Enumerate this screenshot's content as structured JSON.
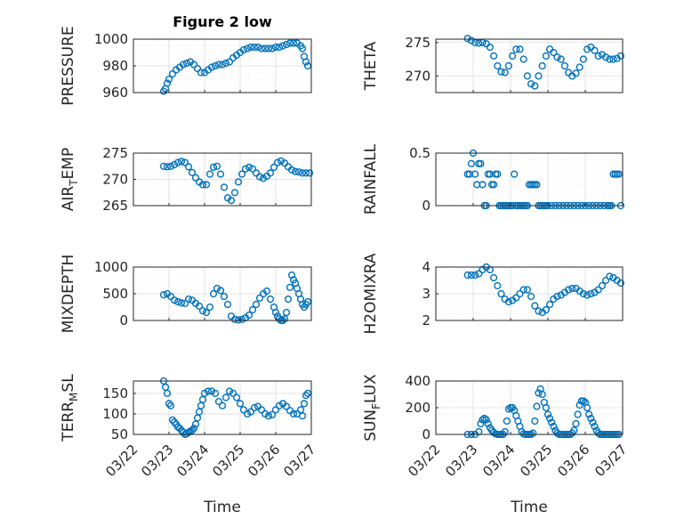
{
  "figure_title": "Figure 2 low",
  "x_tick_labels": [
    "03/22",
    "03/23",
    "03/24",
    "03/25",
    "03/26",
    "03/27"
  ],
  "x_axis_label": "Time",
  "marker_color": "#0072BD",
  "axes_color": "#262626",
  "grid_color": "#dcdcdc",
  "chart_data": [
    {
      "type": "scatter",
      "ylabel": "PRESSURE",
      "ylabel_base": "PRESSURE",
      "ylabel_sub": "",
      "ylabel_tail": "",
      "ylim": [
        960,
        1000
      ],
      "yticks": [
        960,
        980,
        1000
      ],
      "xlim": [
        0,
        5
      ],
      "grid": true,
      "x": [
        0.85,
        0.9,
        0.95,
        1.0,
        1.1,
        1.2,
        1.3,
        1.4,
        1.5,
        1.6,
        1.7,
        1.8,
        1.9,
        2.0,
        2.1,
        2.2,
        2.3,
        2.4,
        2.5,
        2.6,
        2.7,
        2.8,
        2.9,
        3.0,
        3.1,
        3.2,
        3.3,
        3.4,
        3.5,
        3.6,
        3.7,
        3.8,
        3.9,
        4.0,
        4.1,
        4.2,
        4.3,
        4.4,
        4.5,
        4.6,
        4.7,
        4.75,
        4.8,
        4.85,
        4.9
      ],
      "y": [
        961,
        963,
        967,
        970,
        974,
        977,
        979,
        981,
        982,
        983,
        981,
        978,
        975,
        975,
        977,
        979,
        980,
        981,
        981,
        982,
        983,
        986,
        988,
        990,
        992,
        993,
        994,
        994,
        994,
        993,
        993,
        993,
        993,
        994,
        994,
        995,
        996,
        997,
        997,
        997,
        995,
        993,
        987,
        983,
        980
      ]
    },
    {
      "type": "scatter",
      "ylabel": "THETA",
      "ylabel_base": "THETA",
      "ylabel_sub": "",
      "ylabel_tail": "",
      "ylim": [
        267.5,
        275.5
      ],
      "yticks": [
        270,
        275
      ],
      "xlim": [
        0,
        5
      ],
      "grid": true,
      "x": [
        0.85,
        0.95,
        1.05,
        1.15,
        1.25,
        1.35,
        1.45,
        1.55,
        1.65,
        1.75,
        1.85,
        1.95,
        2.05,
        2.15,
        2.25,
        2.35,
        2.45,
        2.55,
        2.65,
        2.75,
        2.85,
        2.95,
        3.05,
        3.15,
        3.25,
        3.35,
        3.45,
        3.55,
        3.65,
        3.75,
        3.85,
        3.95,
        4.05,
        4.15,
        4.25,
        4.35,
        4.45,
        4.55,
        4.65,
        4.75,
        4.85,
        4.95
      ],
      "y": [
        275.6,
        275.3,
        275,
        274.9,
        275,
        274.8,
        274.3,
        273,
        271.5,
        270.6,
        270.5,
        271.5,
        273,
        274,
        274,
        272.5,
        270,
        268.8,
        268.5,
        270,
        271.5,
        273,
        274,
        273.5,
        272.8,
        272.5,
        271.5,
        270.5,
        270,
        270.4,
        271.3,
        272.5,
        274,
        274.3,
        273.8,
        273,
        273.2,
        272.8,
        272.5,
        272.5,
        272.6,
        273
      ]
    },
    {
      "type": "scatter",
      "ylabel": "AIR_TEMP",
      "ylabel_base": "AIR",
      "ylabel_sub": "T",
      "ylabel_tail": "EMP",
      "ylim": [
        265,
        275
      ],
      "yticks": [
        265,
        270,
        275
      ],
      "xlim": [
        0,
        5
      ],
      "grid": true,
      "x": [
        0.85,
        0.95,
        1.05,
        1.15,
        1.25,
        1.35,
        1.45,
        1.55,
        1.65,
        1.75,
        1.85,
        1.95,
        2.05,
        2.15,
        2.25,
        2.35,
        2.45,
        2.55,
        2.65,
        2.75,
        2.85,
        2.95,
        3.05,
        3.15,
        3.25,
        3.35,
        3.45,
        3.55,
        3.65,
        3.75,
        3.85,
        3.95,
        4.05,
        4.15,
        4.25,
        4.35,
        4.45,
        4.55,
        4.65,
        4.75,
        4.85,
        4.95
      ],
      "y": [
        272.5,
        272.4,
        272.5,
        272.8,
        273.2,
        273.4,
        273.2,
        272.4,
        271.3,
        270.3,
        269.5,
        269,
        269,
        271,
        272.3,
        272.5,
        271,
        268.5,
        266.5,
        266,
        267.5,
        269.5,
        271,
        272,
        272.3,
        272,
        271.2,
        270.5,
        270.2,
        270.6,
        271.2,
        272.3,
        273.2,
        273.5,
        273.1,
        272.4,
        271.8,
        271.5,
        271.4,
        271.2,
        271.2,
        271.2
      ]
    },
    {
      "type": "scatter",
      "ylabel": "RAINFALL",
      "ylabel_base": "RAINFALL",
      "ylabel_sub": "",
      "ylabel_tail": "",
      "ylim": [
        0,
        0.5
      ],
      "yticks": [
        0,
        0.5
      ],
      "xlim": [
        0,
        5
      ],
      "grid": true,
      "x": [
        0.85,
        0.9,
        0.95,
        1.0,
        1.05,
        1.1,
        1.15,
        1.2,
        1.25,
        1.3,
        1.35,
        1.4,
        1.45,
        1.5,
        1.55,
        1.6,
        1.65,
        1.7,
        1.75,
        1.8,
        1.85,
        1.9,
        1.95,
        2.0,
        2.05,
        2.1,
        2.15,
        2.2,
        2.25,
        2.3,
        2.35,
        2.4,
        2.45,
        2.5,
        2.55,
        2.6,
        2.65,
        2.7,
        2.75,
        2.8,
        2.85,
        2.9,
        2.95,
        3.0,
        3.1,
        3.2,
        3.3,
        3.4,
        3.5,
        3.6,
        3.7,
        3.8,
        3.9,
        4.0,
        4.1,
        4.2,
        4.3,
        4.4,
        4.5,
        4.6,
        4.65,
        4.7,
        4.75,
        4.8,
        4.85,
        4.9,
        4.95
      ],
      "y": [
        0.3,
        0.3,
        0.4,
        0.5,
        0.3,
        0.2,
        0.4,
        0.4,
        0.2,
        0,
        0,
        0.3,
        0.3,
        0.2,
        0.2,
        0.3,
        0.3,
        0,
        0,
        0,
        0,
        0,
        0,
        0,
        0,
        0.3,
        0,
        0,
        0,
        0,
        0,
        0,
        0,
        0.2,
        0.2,
        0.2,
        0.2,
        0.2,
        0,
        0,
        0,
        0,
        0,
        0,
        0,
        0,
        0,
        0,
        0,
        0,
        0,
        0,
        0,
        0,
        0,
        0,
        0,
        0,
        0,
        0,
        0,
        0,
        0.3,
        0.3,
        0.3,
        0.3,
        0
      ]
    },
    {
      "type": "scatter",
      "ylabel": "MIXDEPTH",
      "ylabel_base": "MIXDEPTH",
      "ylabel_sub": "",
      "ylabel_tail": "",
      "ylim": [
        0,
        1000
      ],
      "yticks": [
        0,
        500,
        1000
      ],
      "xlim": [
        0,
        5
      ],
      "grid": true,
      "x": [
        0.85,
        0.95,
        1.05,
        1.15,
        1.25,
        1.35,
        1.45,
        1.55,
        1.65,
        1.75,
        1.85,
        1.95,
        2.05,
        2.15,
        2.25,
        2.35,
        2.45,
        2.55,
        2.65,
        2.75,
        2.85,
        2.95,
        3.05,
        3.15,
        3.25,
        3.35,
        3.45,
        3.55,
        3.65,
        3.75,
        3.85,
        3.95,
        4.0,
        4.05,
        4.1,
        4.15,
        4.2,
        4.25,
        4.3,
        4.35,
        4.4,
        4.45,
        4.5,
        4.55,
        4.6,
        4.65,
        4.7,
        4.75,
        4.8,
        4.85,
        4.9
      ],
      "y": [
        480,
        500,
        450,
        380,
        350,
        330,
        320,
        400,
        380,
        320,
        270,
        180,
        150,
        250,
        500,
        600,
        560,
        450,
        300,
        80,
        20,
        10,
        20,
        50,
        100,
        200,
        300,
        420,
        500,
        550,
        400,
        250,
        150,
        80,
        30,
        0,
        0,
        30,
        150,
        400,
        620,
        850,
        760,
        700,
        600,
        500,
        400,
        300,
        250,
        300,
        350
      ]
    },
    {
      "type": "scatter",
      "ylabel": "H2OMIXRA",
      "ylabel_base": "H2OMIXRA",
      "ylabel_sub": "",
      "ylabel_tail": "",
      "ylim": [
        2,
        4
      ],
      "yticks": [
        2,
        3,
        4
      ],
      "xlim": [
        0,
        5
      ],
      "grid": true,
      "x": [
        0.85,
        0.95,
        1.05,
        1.15,
        1.25,
        1.35,
        1.45,
        1.55,
        1.65,
        1.75,
        1.85,
        1.95,
        2.05,
        2.15,
        2.25,
        2.35,
        2.45,
        2.55,
        2.65,
        2.75,
        2.85,
        2.95,
        3.05,
        3.15,
        3.25,
        3.35,
        3.45,
        3.55,
        3.65,
        3.75,
        3.85,
        3.95,
        4.05,
        4.15,
        4.25,
        4.35,
        4.45,
        4.55,
        4.65,
        4.75,
        4.85,
        4.95
      ],
      "y": [
        3.7,
        3.7,
        3.7,
        3.75,
        3.9,
        4.0,
        3.9,
        3.6,
        3.3,
        3.0,
        2.8,
        2.7,
        2.75,
        2.85,
        3.0,
        3.15,
        3.15,
        2.9,
        2.55,
        2.35,
        2.3,
        2.4,
        2.6,
        2.8,
        2.9,
        2.95,
        3.05,
        3.15,
        3.2,
        3.2,
        3.1,
        3.0,
        2.95,
        3.0,
        3.05,
        3.15,
        3.3,
        3.5,
        3.65,
        3.6,
        3.5,
        3.4
      ]
    },
    {
      "type": "scatter",
      "ylabel": "TERR_MSL",
      "ylabel_base": "TERR",
      "ylabel_sub": "M",
      "ylabel_tail": "SL",
      "ylim": [
        50,
        180
      ],
      "yticks": [
        50,
        100,
        150
      ],
      "xlim": [
        0,
        5
      ],
      "grid": true,
      "x": [
        0.85,
        0.9,
        0.95,
        1.0,
        1.05,
        1.1,
        1.15,
        1.2,
        1.25,
        1.3,
        1.35,
        1.4,
        1.45,
        1.5,
        1.55,
        1.6,
        1.65,
        1.7,
        1.75,
        1.8,
        1.85,
        1.9,
        1.95,
        2.0,
        2.1,
        2.2,
        2.3,
        2.4,
        2.5,
        2.6,
        2.7,
        2.8,
        2.9,
        3.0,
        3.1,
        3.2,
        3.3,
        3.4,
        3.5,
        3.6,
        3.7,
        3.8,
        3.9,
        4.0,
        4.1,
        4.2,
        4.3,
        4.4,
        4.5,
        4.6,
        4.7,
        4.75,
        4.8,
        4.85,
        4.9
      ],
      "y": [
        180,
        165,
        150,
        125,
        120,
        85,
        80,
        75,
        68,
        65,
        60,
        55,
        50,
        52,
        55,
        58,
        60,
        65,
        75,
        90,
        105,
        120,
        135,
        150,
        155,
        155,
        150,
        130,
        120,
        140,
        155,
        150,
        140,
        125,
        110,
        100,
        105,
        115,
        118,
        110,
        100,
        95,
        98,
        110,
        120,
        125,
        118,
        108,
        100,
        100,
        110,
        95,
        125,
        145,
        150
      ]
    },
    {
      "type": "scatter",
      "ylabel": "SUN_FLUX",
      "ylabel_base": "SUN",
      "ylabel_sub": "F",
      "ylabel_tail": "LUX",
      "ylim": [
        0,
        400
      ],
      "yticks": [
        0,
        200,
        400
      ],
      "xlim": [
        0,
        5
      ],
      "grid": true,
      "x": [
        0.85,
        0.95,
        1.05,
        1.15,
        1.2,
        1.25,
        1.3,
        1.35,
        1.4,
        1.45,
        1.5,
        1.55,
        1.6,
        1.65,
        1.7,
        1.75,
        1.8,
        1.85,
        1.9,
        1.95,
        2.0,
        2.05,
        2.1,
        2.15,
        2.2,
        2.25,
        2.3,
        2.35,
        2.4,
        2.45,
        2.5,
        2.55,
        2.6,
        2.65,
        2.7,
        2.75,
        2.8,
        2.85,
        2.9,
        2.95,
        3.0,
        3.05,
        3.1,
        3.15,
        3.2,
        3.25,
        3.3,
        3.35,
        3.4,
        3.45,
        3.5,
        3.55,
        3.6,
        3.65,
        3.7,
        3.75,
        3.8,
        3.85,
        3.9,
        3.95,
        4.0,
        4.05,
        4.1,
        4.15,
        4.2,
        4.25,
        4.3,
        4.35,
        4.4,
        4.45,
        4.5,
        4.55,
        4.6,
        4.65,
        4.7,
        4.75,
        4.8,
        4.85,
        4.9
      ],
      "y": [
        0,
        0,
        0,
        20,
        80,
        110,
        120,
        110,
        80,
        50,
        30,
        15,
        5,
        0,
        0,
        0,
        0,
        20,
        100,
        190,
        200,
        200,
        180,
        140,
        100,
        60,
        20,
        5,
        0,
        0,
        0,
        0,
        10,
        100,
        210,
        310,
        340,
        300,
        240,
        200,
        150,
        120,
        90,
        60,
        30,
        10,
        0,
        0,
        0,
        0,
        0,
        0,
        0,
        10,
        30,
        80,
        150,
        220,
        250,
        250,
        240,
        200,
        150,
        120,
        90,
        60,
        30,
        10,
        0,
        0,
        0,
        0,
        0,
        0,
        0,
        0,
        0,
        0,
        0
      ]
    }
  ]
}
